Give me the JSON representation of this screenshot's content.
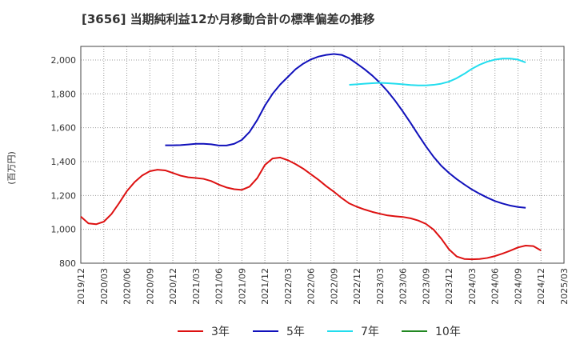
{
  "chart_data": {
    "type": "line",
    "title": "[3656]  当期純利益12か月移動合計の標準偏差の推移",
    "ylabel": "(百万円)",
    "xlabel": "",
    "ylim": [
      800,
      2080
    ],
    "yticks": [
      800,
      1000,
      1200,
      1400,
      1600,
      1800,
      2000
    ],
    "ytick_labels": [
      "800",
      "1,000",
      "1,200",
      "1,400",
      "1,600",
      "1,800",
      "2,000"
    ],
    "xticks": [
      "2019/12",
      "2020/03",
      "2020/06",
      "2020/09",
      "2020/12",
      "2021/03",
      "2021/06",
      "2021/09",
      "2021/12",
      "2022/03",
      "2022/06",
      "2022/09",
      "2022/12",
      "2023/03",
      "2023/06",
      "2023/09",
      "2023/12",
      "2024/03",
      "2024/06",
      "2024/09",
      "2024/12",
      "2025/03"
    ],
    "grid": true,
    "legend_position": "bottom",
    "series": [
      {
        "name": "3年",
        "color": "#dd1111",
        "start": "2019/12",
        "values": [
          1075,
          1035,
          1030,
          1045,
          1090,
          1155,
          1225,
          1278,
          1318,
          1343,
          1352,
          1348,
          1333,
          1317,
          1307,
          1303,
          1298,
          1285,
          1264,
          1247,
          1237,
          1233,
          1252,
          1302,
          1380,
          1418,
          1424,
          1408,
          1385,
          1358,
          1325,
          1292,
          1255,
          1222,
          1185,
          1153,
          1133,
          1117,
          1103,
          1092,
          1082,
          1077,
          1073,
          1065,
          1052,
          1032,
          998,
          945,
          882,
          840,
          825,
          823,
          825,
          831,
          842,
          857,
          874,
          893,
          904,
          901,
          875
        ]
      },
      {
        "name": "5年",
        "color": "#1111bb",
        "start": "2020/11",
        "values": [
          1496,
          1496,
          1497,
          1501,
          1505,
          1505,
          1502,
          1495,
          1495,
          1505,
          1528,
          1575,
          1645,
          1730,
          1800,
          1855,
          1900,
          1945,
          1978,
          2003,
          2020,
          2030,
          2035,
          2030,
          2010,
          1978,
          1945,
          1908,
          1865,
          1815,
          1758,
          1695,
          1628,
          1558,
          1490,
          1428,
          1375,
          1333,
          1297,
          1265,
          1235,
          1210,
          1187,
          1167,
          1152,
          1140,
          1132,
          1127
        ]
      },
      {
        "name": "7年",
        "color": "#22ddee",
        "start": "2022/11",
        "values": [
          1853,
          1856,
          1860,
          1863,
          1865,
          1863,
          1860,
          1856,
          1852,
          1850,
          1850,
          1853,
          1860,
          1872,
          1892,
          1918,
          1948,
          1972,
          1990,
          2002,
          2008,
          2008,
          2002,
          1985
        ]
      },
      {
        "name": "10年",
        "color": "#228822",
        "start": "2024/12",
        "values": []
      }
    ]
  }
}
